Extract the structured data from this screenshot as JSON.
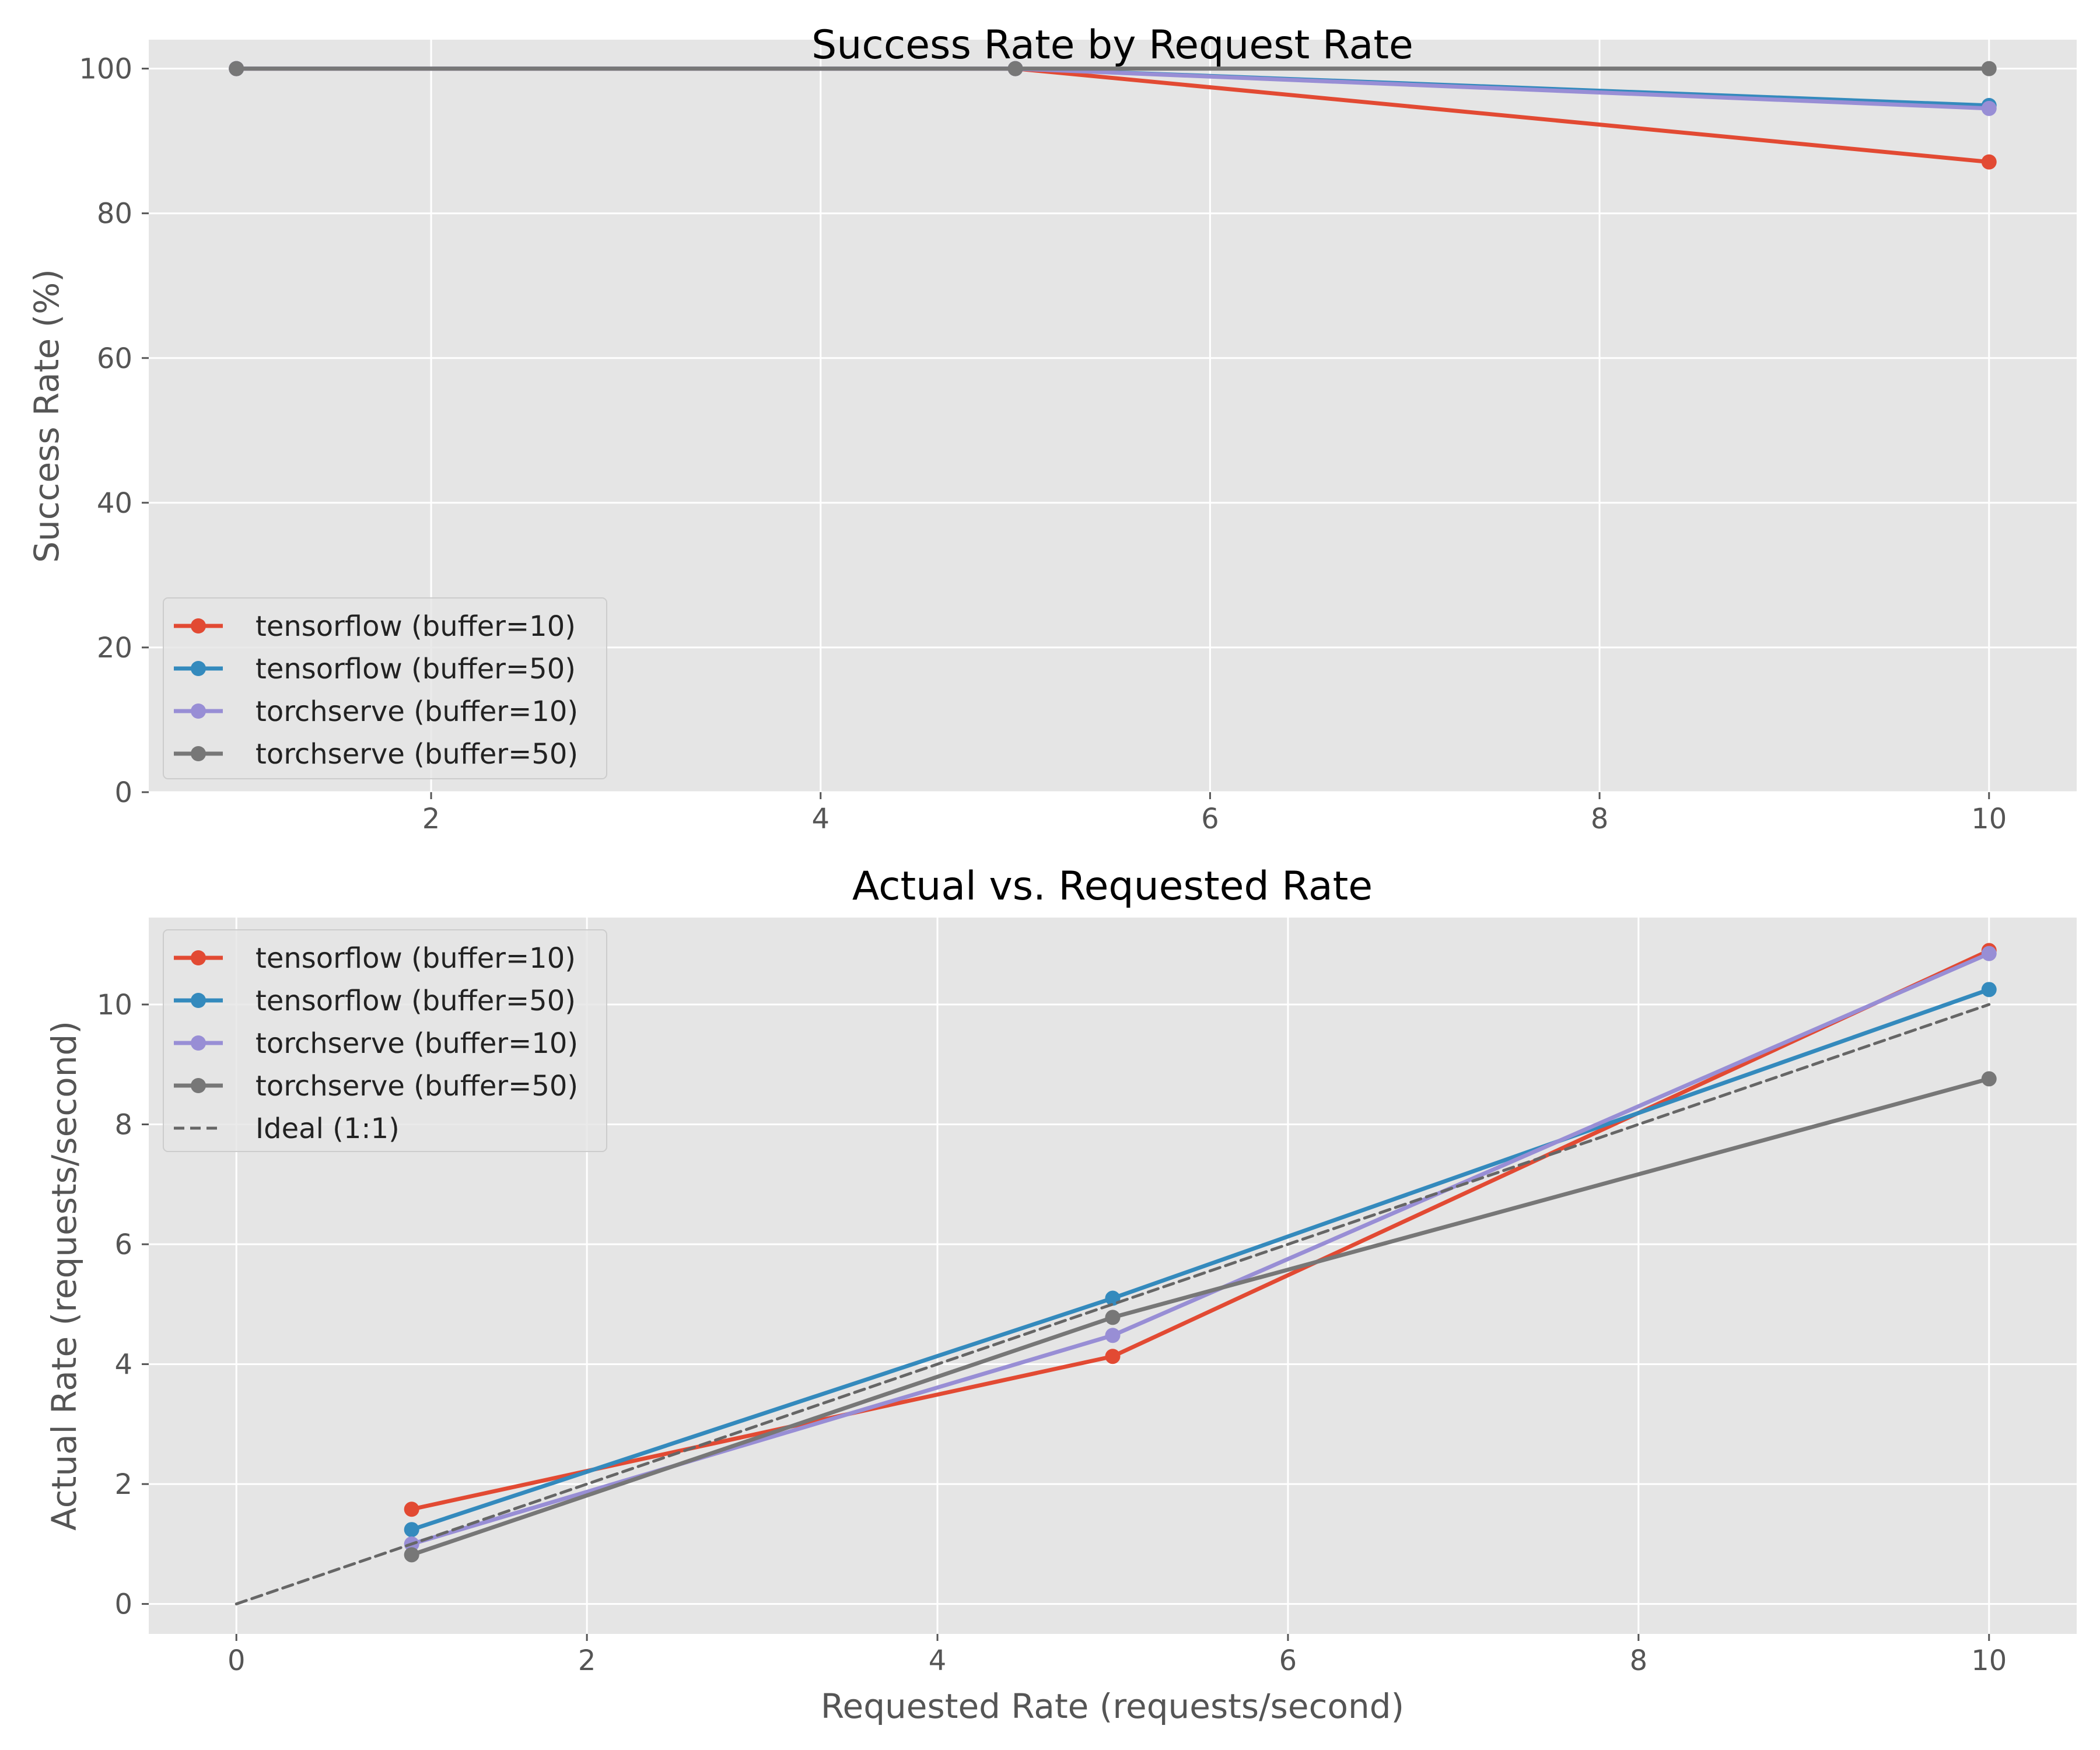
{
  "chart_data": [
    {
      "type": "line",
      "title": "Success Rate by Request Rate",
      "xlabel": "",
      "ylabel": "Success Rate (%)",
      "xlim": [
        0.55,
        10.45
      ],
      "ylim": [
        0,
        104
      ],
      "xticks": [
        2,
        4,
        6,
        8,
        10
      ],
      "yticks": [
        0,
        20,
        40,
        60,
        80,
        100
      ],
      "grid": true,
      "legend_position": "lower-left",
      "series": [
        {
          "name": "tensorflow (buffer=10)",
          "color": "#E24A33",
          "x": [
            1,
            5,
            10
          ],
          "y": [
            100,
            100,
            87.1
          ]
        },
        {
          "name": "tensorflow (buffer=50)",
          "color": "#348ABD",
          "x": [
            1,
            5,
            10
          ],
          "y": [
            100,
            100,
            94.9
          ]
        },
        {
          "name": "torchserve (buffer=10)",
          "color": "#988ED5",
          "x": [
            1,
            5,
            10
          ],
          "y": [
            100,
            100,
            94.5
          ]
        },
        {
          "name": "torchserve (buffer=50)",
          "color": "#777777",
          "x": [
            1,
            5,
            10
          ],
          "y": [
            100,
            100,
            100
          ]
        }
      ]
    },
    {
      "type": "line",
      "title": "Actual vs. Requested Rate",
      "xlabel": "Requested Rate (requests/second)",
      "ylabel": "Actual Rate (requests/second)",
      "xlim": [
        -0.5,
        10.5
      ],
      "ylim": [
        -0.5,
        11.45
      ],
      "xticks": [
        0,
        2,
        4,
        6,
        8,
        10
      ],
      "yticks": [
        0,
        2,
        4,
        6,
        8,
        10
      ],
      "grid": true,
      "legend_position": "upper-left",
      "series": [
        {
          "name": "tensorflow (buffer=10)",
          "color": "#E24A33",
          "x": [
            1,
            5,
            10
          ],
          "y": [
            1.58,
            4.13,
            10.9
          ]
        },
        {
          "name": "tensorflow (buffer=50)",
          "color": "#348ABD",
          "x": [
            1,
            5,
            10
          ],
          "y": [
            1.24,
            5.1,
            10.25
          ]
        },
        {
          "name": "torchserve (buffer=10)",
          "color": "#988ED5",
          "x": [
            1,
            5,
            10
          ],
          "y": [
            1.0,
            4.48,
            10.85
          ]
        },
        {
          "name": "torchserve (buffer=50)",
          "color": "#777777",
          "x": [
            1,
            5,
            10
          ],
          "y": [
            0.82,
            4.78,
            8.76
          ]
        },
        {
          "name": "Ideal (1:1)",
          "color": "#666666",
          "dashed": true,
          "markers": false,
          "x": [
            0,
            10
          ],
          "y": [
            0,
            10
          ]
        }
      ]
    }
  ]
}
